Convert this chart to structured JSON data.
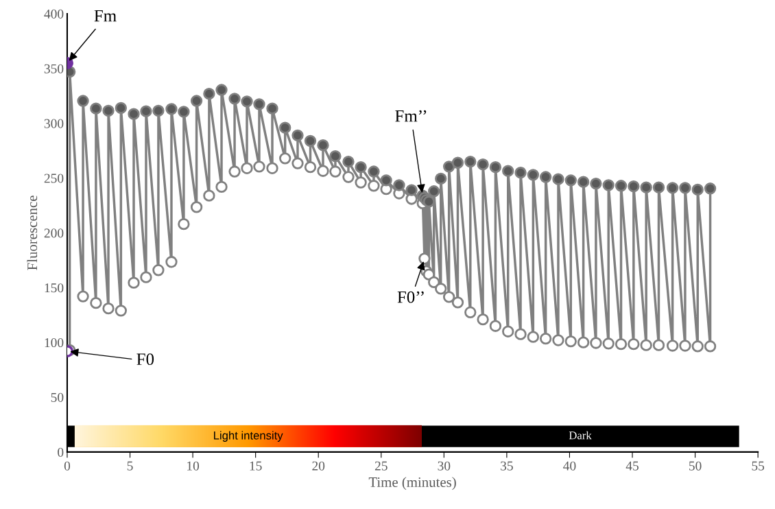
{
  "chart_data": {
    "type": "line",
    "xlabel": "Time (minutes)",
    "ylabel": "Fluorescence",
    "xlim": [
      0,
      55
    ],
    "xticks": [
      0,
      5,
      10,
      15,
      20,
      25,
      30,
      35,
      40,
      45,
      50,
      55
    ],
    "ylim": [
      0,
      400
    ],
    "yticks": [
      0,
      50,
      100,
      150,
      200,
      250,
      300,
      350,
      400
    ],
    "grid": false,
    "legend": false,
    "marker": "circle",
    "line_style": "solid",
    "series": [
      {
        "color": "#808080",
        "x": [
          0.2,
          0.2,
          1.26,
          1.26,
          2.29,
          2.29,
          3.28,
          3.28,
          4.28,
          4.28,
          5.3,
          5.3,
          6.28,
          6.28,
          7.26,
          7.26,
          8.3,
          8.3,
          9.28,
          9.28,
          10.3,
          10.3,
          11.3,
          11.3,
          12.29,
          12.29,
          13.33,
          13.33,
          14.31,
          14.31,
          15.29,
          15.29,
          16.33,
          16.33,
          17.35,
          17.35,
          18.35,
          18.35,
          19.36,
          19.36,
          20.37,
          20.37,
          21.35,
          21.35,
          22.39,
          22.39,
          23.38,
          23.38,
          24.41,
          24.41,
          25.4,
          25.4,
          26.43,
          26.43,
          27.42,
          27.42,
          28.3,
          28.3,
          28.45,
          28.45,
          28.6,
          28.6,
          28.8,
          28.8,
          29.2,
          29.2,
          29.75,
          29.75,
          30.4,
          30.4,
          31.1,
          31.1,
          32.1,
          32.1,
          33.1,
          33.1,
          34.1,
          34.1,
          35.1,
          35.1,
          36.1,
          36.1,
          37.1,
          37.1,
          38.1,
          38.1,
          39.1,
          39.1,
          40.1,
          40.1,
          41.1,
          41.1,
          42.1,
          42.1,
          43.1,
          43.1,
          44.1,
          44.1,
          45.1,
          45.1,
          46.1,
          46.1,
          47.1,
          47.1,
          48.2,
          48.2,
          49.2,
          49.2,
          50.2,
          50.2,
          51.2,
          51.2
        ],
        "values": [
          93,
          347,
          142,
          320.5,
          136,
          313.5,
          131,
          311.5,
          129,
          314,
          154.5,
          308.5,
          159.5,
          311,
          166,
          311.5,
          173.5,
          313,
          208,
          310.5,
          223.5,
          320.5,
          234,
          327,
          242,
          330.5,
          256,
          322.5,
          259,
          320,
          260.5,
          317.5,
          259,
          313.5,
          268,
          296,
          263.5,
          289,
          260,
          284,
          256.5,
          280,
          256,
          270,
          251,
          265,
          246,
          260,
          243,
          256,
          240,
          248,
          236,
          243.5,
          231,
          239,
          227,
          234,
          176.5,
          232,
          165,
          230,
          162,
          228.5,
          155,
          238,
          149,
          249.5,
          141.5,
          260.5,
          136.5,
          264,
          127.5,
          265,
          121,
          262.5,
          115,
          260,
          110,
          256.5,
          107.5,
          255,
          105,
          253,
          103.5,
          251,
          102,
          249,
          101,
          248,
          100,
          246.5,
          99.5,
          245,
          99,
          243.5,
          98.5,
          243,
          98.5,
          242.5,
          97.5,
          241.5,
          97.5,
          241.5,
          97,
          241,
          97,
          241,
          96.5,
          239.5,
          96.5,
          240.5
        ],
        "colors": [
          "#ffffff",
          "#595959",
          "#ffffff",
          "#595959",
          "#ffffff",
          "#595959",
          "#ffffff",
          "#595959",
          "#ffffff",
          "#595959",
          "#ffffff",
          "#595959",
          "#ffffff",
          "#595959",
          "#ffffff",
          "#595959",
          "#ffffff",
          "#595959",
          "#ffffff",
          "#595959",
          "#ffffff",
          "#595959",
          "#ffffff",
          "#595959",
          "#ffffff",
          "#595959",
          "#ffffff",
          "#595959",
          "#ffffff",
          "#595959",
          "#ffffff",
          "#595959",
          "#ffffff",
          "#595959",
          "#ffffff",
          "#595959",
          "#ffffff",
          "#595959",
          "#ffffff",
          "#595959",
          "#ffffff",
          "#595959",
          "#ffffff",
          "#595959",
          "#ffffff",
          "#595959",
          "#ffffff",
          "#595959",
          "#ffffff",
          "#595959",
          "#ffffff",
          "#595959",
          "#ffffff",
          "#595959",
          "#ffffff",
          "#595959",
          "#ffffff",
          "#595959",
          "#ffffff",
          "#595959",
          "#ffffff",
          "#595959",
          "#ffffff",
          "#595959",
          "#ffffff",
          "#595959",
          "#ffffff",
          "#595959",
          "#ffffff",
          "#595959",
          "#ffffff",
          "#595959",
          "#ffffff",
          "#595959",
          "#ffffff",
          "#595959",
          "#ffffff",
          "#595959",
          "#ffffff",
          "#595959",
          "#ffffff",
          "#595959",
          "#ffffff",
          "#595959",
          "#ffffff",
          "#595959",
          "#ffffff",
          "#595959",
          "#ffffff",
          "#595959",
          "#ffffff",
          "#595959",
          "#ffffff",
          "#595959",
          "#ffffff",
          "#595959",
          "#ffffff",
          "#595959",
          "#ffffff",
          "#595959",
          "#ffffff",
          "#595959",
          "#ffffff",
          "#595959",
          "#ffffff",
          "#595959",
          "#ffffff",
          "#595959",
          "#ffffff",
          "#595959",
          "#ffffff",
          "#595959"
        ]
      },
      {
        "type": "scatter",
        "color": "#7030a0",
        "x": [
          0,
          0
        ],
        "values": [
          355,
          92
        ],
        "colors": [
          "#7030a0",
          "#ffffff"
        ]
      }
    ],
    "bands": [
      {
        "axis": "x",
        "from": 0,
        "to": 0.6,
        "color": "#000000"
      },
      {
        "axis": "x",
        "from": 0.6,
        "to": 28.2,
        "label": "Light intensity",
        "color": "#ff9900"
      },
      {
        "axis": "x",
        "from": 28.2,
        "to": 53.5,
        "label": "Dark",
        "color": "#000000"
      }
    ],
    "annotations": [
      {
        "text": "Fm",
        "x": 0,
        "y": 355
      },
      {
        "text": "F0",
        "x": 0,
        "y": 92
      },
      {
        "text": "Fm’’",
        "x": 28.3,
        "y": 234
      },
      {
        "text": "F0’’",
        "x": 28.45,
        "y": 176.5
      }
    ]
  }
}
